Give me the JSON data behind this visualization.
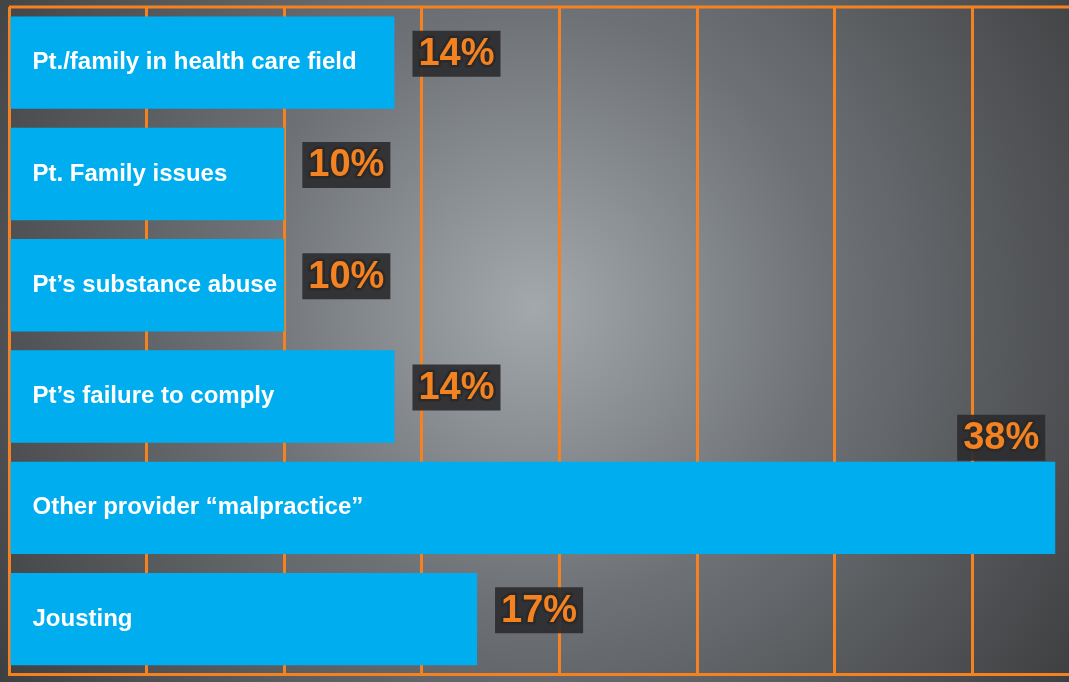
{
  "chart_data": {
    "type": "bar",
    "orientation": "horizontal",
    "categories": [
      "Pt./family in health care field",
      "Pt. Family issues",
      "Pt’s substance abuse",
      "Pt’s failure to comply",
      "Other provider “malpractice”",
      "Jousting"
    ],
    "values": [
      14,
      10,
      10,
      14,
      38,
      17
    ],
    "value_labels": [
      "14%",
      "10%",
      "10%",
      "14%",
      "38%",
      "17%"
    ],
    "color": "#00aeef",
    "xlim": [
      0,
      38.5
    ],
    "xticks": [
      {
        "value": 0,
        "label": null
      },
      {
        "value": 5,
        "label": null
      },
      {
        "value": 10,
        "label": null
      },
      {
        "value": 15,
        "label": null
      },
      {
        "value": 20,
        "label": null
      },
      {
        "value": 25,
        "label": null
      },
      {
        "value": 30,
        "label": null
      },
      {
        "value": 35,
        "label": null
      }
    ],
    "grid": "x",
    "legend": false
  }
}
